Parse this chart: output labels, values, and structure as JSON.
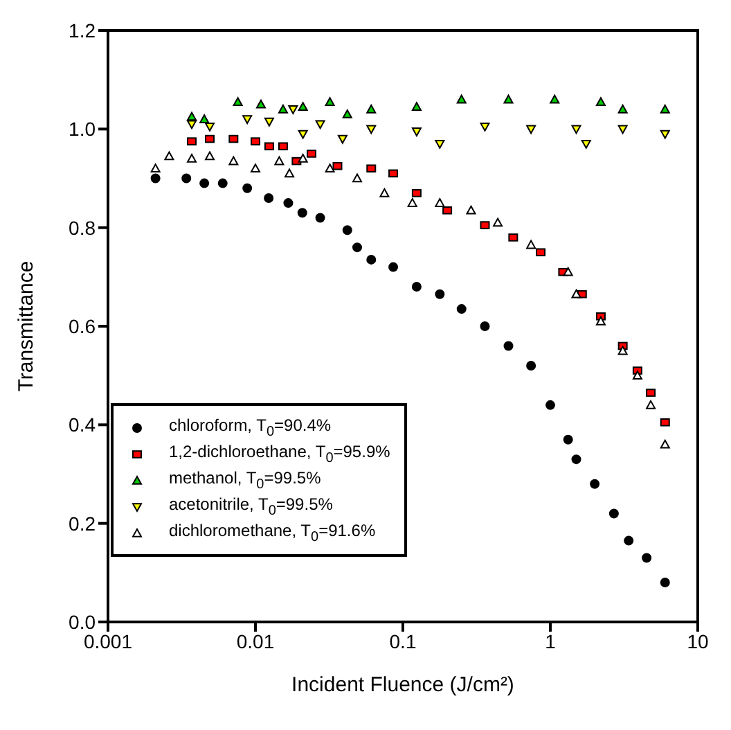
{
  "chart_data": {
    "type": "scatter",
    "xlabel": "Incident Fluence  (J/cm²)",
    "ylabel": "Transmittance",
    "log": "x",
    "xlim": [
      0.001,
      10
    ],
    "xticks": [
      0.001,
      0.01,
      0.1,
      1,
      10
    ],
    "ylim": [
      0,
      1.2
    ],
    "yticks": [
      {
        "value": 0,
        "label": "0.0"
      },
      {
        "value": 0.2,
        "label": "0.2"
      },
      {
        "value": 0.4,
        "label": "0.4"
      },
      {
        "value": 0.6,
        "label": "0.6"
      },
      {
        "value": 0.8,
        "label": "0.8"
      },
      {
        "value": 1,
        "label": "1.0"
      },
      {
        "value": 1.2,
        "label": "1.2"
      }
    ],
    "grid": false,
    "legend": "bottom left",
    "series": [
      {
        "name": "chloroform, T$_{0}$=90.4%",
        "color": "#000000",
        "marker": "circle",
        "x": [
          0.0021,
          0.0034,
          0.0045,
          0.006,
          0.0088,
          0.0123,
          0.0167,
          0.0208,
          0.0275,
          0.042,
          0.049,
          0.061,
          0.086,
          0.124,
          0.178,
          0.25,
          0.36,
          0.52,
          0.74,
          1.0,
          1.32,
          1.5,
          2.0,
          2.7,
          3.4,
          4.5,
          6.0
        ],
        "values": [
          0.9,
          0.9,
          0.89,
          0.89,
          0.88,
          0.86,
          0.85,
          0.83,
          0.82,
          0.795,
          0.76,
          0.735,
          0.72,
          0.68,
          0.665,
          0.635,
          0.6,
          0.56,
          0.52,
          0.44,
          0.37,
          0.33,
          0.28,
          0.22,
          0.165,
          0.13,
          0.08
        ]
      },
      {
        "name": "1,2-dichloroethane, T$_{0}$=95.9%",
        "color": "#ff0000",
        "marker": "square",
        "x": [
          0.0037,
          0.0049,
          0.0071,
          0.01,
          0.0124,
          0.0154,
          0.019,
          0.024,
          0.036,
          0.061,
          0.086,
          0.124,
          0.2,
          0.36,
          0.56,
          0.86,
          1.22,
          1.64,
          2.2,
          3.1,
          3.9,
          4.8,
          6.0
        ],
        "values": [
          0.975,
          0.98,
          0.98,
          0.975,
          0.965,
          0.965,
          0.935,
          0.95,
          0.925,
          0.92,
          0.91,
          0.87,
          0.835,
          0.805,
          0.78,
          0.75,
          0.71,
          0.665,
          0.62,
          0.56,
          0.51,
          0.465,
          0.405
        ]
      },
      {
        "name": "methanol, T$_{0}$=99.5%",
        "color": "#00cc00",
        "marker": "triangle",
        "x": [
          0.0037,
          0.0045,
          0.0076,
          0.0109,
          0.0154,
          0.021,
          0.032,
          0.042,
          0.061,
          0.124,
          0.25,
          0.52,
          1.07,
          2.2,
          3.1,
          6.0
        ],
        "values": [
          1.025,
          1.02,
          1.055,
          1.05,
          1.04,
          1.045,
          1.055,
          1.03,
          1.04,
          1.045,
          1.06,
          1.06,
          1.06,
          1.055,
          1.04,
          1.04
        ]
      },
      {
        "name": "acetonitrile, T$_{0}$=99.5%",
        "color": "#ffff00",
        "marker": "triangle-down",
        "x": [
          0.0037,
          0.0049,
          0.0088,
          0.0124,
          0.018,
          0.021,
          0.0275,
          0.039,
          0.061,
          0.124,
          0.178,
          0.36,
          0.74,
          1.5,
          1.75,
          3.1,
          6.0
        ],
        "values": [
          1.01,
          1.005,
          1.02,
          1.015,
          1.04,
          0.99,
          1.01,
          0.98,
          1.0,
          0.995,
          0.97,
          1.005,
          1.0,
          1.0,
          0.97,
          1.0,
          0.99
        ]
      },
      {
        "name": "dichloromethane, T$_{0}$=91.6%",
        "color": "#ffffff",
        "marker": "triangle",
        "x": [
          0.0021,
          0.0026,
          0.0037,
          0.0049,
          0.0071,
          0.01,
          0.0145,
          0.017,
          0.021,
          0.032,
          0.049,
          0.075,
          0.116,
          0.178,
          0.29,
          0.44,
          0.74,
          1.32,
          1.5,
          2.2,
          3.1,
          3.9,
          4.8,
          6.0
        ],
        "values": [
          0.92,
          0.945,
          0.94,
          0.945,
          0.935,
          0.92,
          0.935,
          0.91,
          0.94,
          0.92,
          0.9,
          0.87,
          0.85,
          0.85,
          0.835,
          0.81,
          0.765,
          0.71,
          0.665,
          0.61,
          0.55,
          0.5,
          0.44,
          0.36
        ]
      }
    ]
  }
}
